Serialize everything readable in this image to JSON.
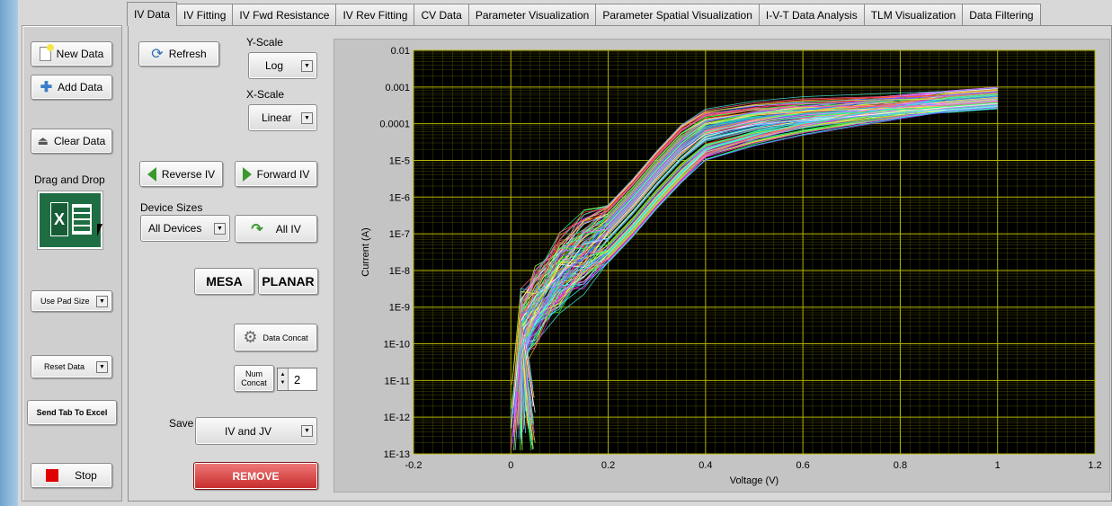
{
  "tabs": [
    "IV Data",
    "IV Fitting",
    "IV Fwd Resistance",
    "IV Rev Fitting",
    "CV Data",
    "Parameter Visualization",
    "Parameter Spatial Visualization",
    "I-V-T Data Analysis",
    "TLM Visualization",
    "Data Filtering"
  ],
  "active_tab": "IV Data",
  "left": {
    "new_data": "New Data",
    "add_data": "Add Data",
    "clear_data": "Clear Data",
    "drag_drop": "Drag and Drop",
    "pad_size": "Use Pad Size",
    "reset_data": "Reset Data",
    "send_tab": "Send Tab To Excel",
    "stop": "Stop"
  },
  "controls": {
    "refresh": "Refresh",
    "y_scale_label": "Y-Scale",
    "y_scale_value": "Log",
    "x_scale_label": "X-Scale",
    "x_scale_value": "Linear",
    "reverse_iv": "Reverse IV",
    "forward_iv": "Forward IV",
    "device_sizes_label": "Device Sizes",
    "device_sizes_value": "All Devices",
    "all_iv": "All IV",
    "mesa": "MESA",
    "planar": "PLANAR",
    "data_concat": "Data Concat",
    "num_concat": "Num Concat",
    "num_concat_value": "2",
    "save_label": "Save",
    "save_value": "IV and JV",
    "remove": "REMOVE"
  },
  "colors": {
    "plot_bg": "#000000",
    "grid": "#b5b500",
    "remove": "#d23a3a"
  },
  "chart_data": {
    "type": "line",
    "xlabel": "Voltage (V)",
    "ylabel": "Current (A)",
    "xlim": [
      -0.2,
      1.2
    ],
    "ylim": [
      1e-13,
      0.01
    ],
    "yscale": "log",
    "grid": true,
    "x_ticks": [
      "-0.2",
      "0",
      "0.2",
      "0.4",
      "0.6",
      "0.8",
      "1",
      "1.2"
    ],
    "y_ticks": [
      "0.01",
      "0.001",
      "0.0001",
      "1E-5",
      "1E-6",
      "1E-7",
      "1E-8",
      "1E-9",
      "1E-10",
      "1E-11",
      "1E-12",
      "1E-13"
    ],
    "series_count": 120,
    "representative_curve": {
      "x": [
        0.0,
        0.02,
        0.05,
        0.1,
        0.15,
        0.2,
        0.25,
        0.3,
        0.35,
        0.4,
        0.5,
        0.6,
        0.7,
        0.8,
        0.9,
        1.0
      ],
      "y": [
        1e-12,
        2e-10,
        1e-09,
        8e-09,
        3e-08,
        1e-07,
        5e-07,
        3e-06,
        1.5e-05,
        5e-05,
        0.0001,
        0.00016,
        0.00022,
        0.0003,
        0.0004,
        0.0005
      ]
    }
  }
}
